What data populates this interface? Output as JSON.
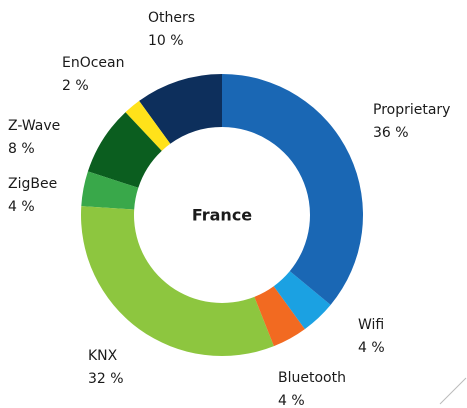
{
  "chart_data": {
    "type": "donut",
    "title": "France",
    "categories": [
      "Proprietary",
      "Wifi",
      "Bluetooth",
      "KNX",
      "ZigBee",
      "Z-Wave",
      "EnOcean",
      "Others"
    ],
    "values": [
      36,
      4,
      4,
      32,
      4,
      8,
      2,
      10
    ],
    "value_labels": [
      "36 %",
      "4 %",
      "4 %",
      "32 %",
      "4 %",
      "8 %",
      "2 %",
      "10 %"
    ],
    "colors": [
      "#1a67b4",
      "#1ba1e2",
      "#f26a21",
      "#8dc63f",
      "#39a84a",
      "#0b5e1f",
      "#ffe21a",
      "#0d2f5c"
    ]
  }
}
